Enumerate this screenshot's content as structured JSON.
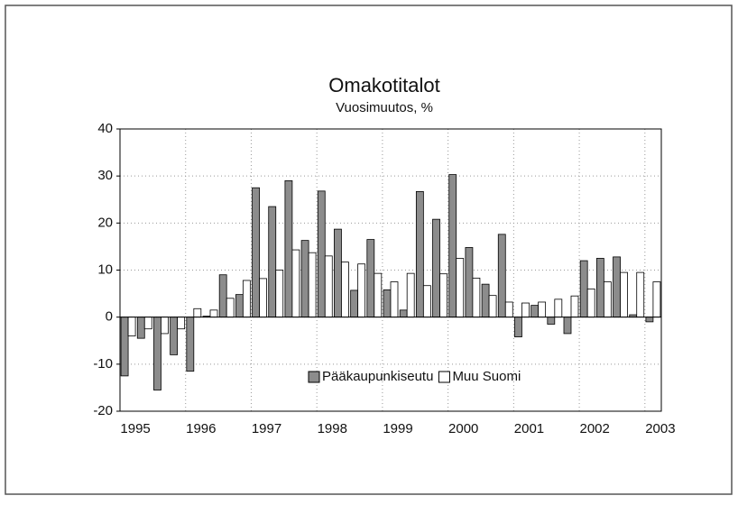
{
  "chart_data": {
    "type": "bar",
    "title": "Omakotitalot",
    "subtitle": "Vuosimuutos, %",
    "categories": [
      "1995",
      null,
      null,
      null,
      "1996",
      null,
      null,
      null,
      "1997",
      null,
      null,
      null,
      "1998",
      null,
      null,
      null,
      "1999",
      null,
      null,
      null,
      "2000",
      null,
      null,
      null,
      "2001",
      null,
      null,
      null,
      "2002",
      null,
      null,
      null,
      "2003"
    ],
    "series": [
      {
        "name": "Pääkaupunkiseutu",
        "color": "#8c8c8c",
        "values": [
          -12.5,
          -4.5,
          -15.5,
          -8,
          -11.5,
          0.2,
          9,
          4.8,
          27.5,
          23.5,
          29,
          16.3,
          26.8,
          18.7,
          5.7,
          16.5,
          5.8,
          1.5,
          26.7,
          20.8,
          30.3,
          14.8,
          7,
          17.6,
          -4.2,
          2.5,
          -1.5,
          -3.5,
          12,
          12.5,
          12.8,
          0.5,
          -1
        ]
      },
      {
        "name": "Muu Suomi",
        "color": "#ffffff",
        "values": [
          -4,
          -2.5,
          -3.5,
          -2.5,
          1.8,
          1.5,
          4,
          7.8,
          8.2,
          10,
          14.3,
          13.7,
          13,
          11.7,
          11.3,
          9.3,
          7.5,
          9.3,
          6.7,
          9.2,
          12.5,
          8.3,
          4.6,
          3.2,
          3,
          3.2,
          3.8,
          4.5,
          6,
          7.5,
          9.5,
          9.5,
          7.5
        ]
      }
    ],
    "ylim": [
      -20,
      40
    ],
    "yticks": [
      -20,
      -10,
      0,
      10,
      20,
      30,
      40
    ],
    "grid": true,
    "legend": "lower center"
  }
}
